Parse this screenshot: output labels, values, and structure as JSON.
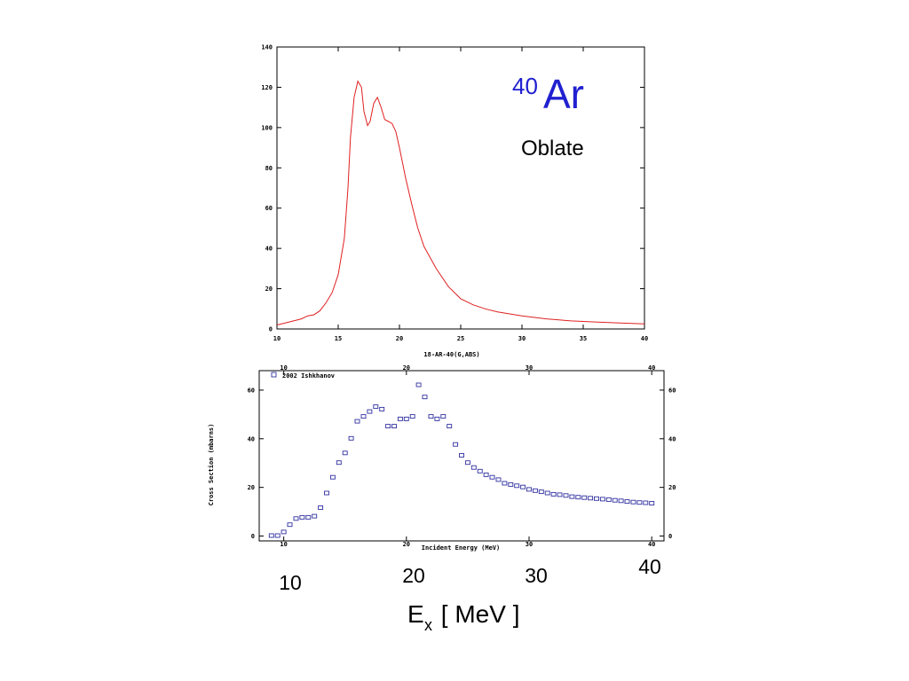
{
  "slide": {
    "nucleus_mass": "40",
    "nucleus_symbol": "Ar",
    "shape_label": "Oblate",
    "bottom_axis_label_main": "E",
    "bottom_axis_label_sub": "x",
    "bottom_axis_label_unit": " [ MeV ]",
    "bottom_ticks": [
      "10",
      "20",
      "30",
      "40"
    ]
  },
  "colors": {
    "top_curve": "#e02020",
    "points": "#3030a0",
    "title": "#2020d0",
    "axes": "#000000"
  },
  "chart_data": [
    {
      "type": "line",
      "title": "",
      "xlabel": "18-AR-40(G,ABS)",
      "ylabel": "",
      "xlim": [
        10,
        40
      ],
      "ylim": [
        0,
        140
      ],
      "x_ticks": [
        10,
        15,
        20,
        25,
        30,
        35,
        40
      ],
      "y_ticks": [
        0,
        20,
        40,
        60,
        80,
        100,
        120,
        140
      ],
      "grid": false,
      "series": [
        {
          "x": [
            10,
            11,
            12,
            12.5,
            13,
            13.5,
            14,
            14.5,
            15,
            15.5,
            15.8,
            16,
            16.3,
            16.6,
            16.9,
            17.1,
            17.4,
            17.6,
            17.9,
            18.2,
            18.5,
            18.8,
            19.1,
            19.4,
            19.7,
            20,
            20.5,
            21,
            21.5,
            22,
            23,
            24,
            25,
            26,
            27,
            28,
            30,
            32,
            34,
            36,
            38,
            40
          ],
          "y": [
            2,
            3.5,
            5,
            6.5,
            7,
            9,
            13,
            18,
            27,
            45,
            70,
            95,
            115,
            123,
            120,
            108,
            101,
            103,
            112,
            115,
            110,
            104,
            103,
            102,
            98,
            90,
            75,
            62,
            50,
            41,
            30,
            21,
            15,
            12,
            10,
            8.5,
            6.5,
            5,
            4,
            3.5,
            3,
            2.5
          ]
        }
      ]
    },
    {
      "type": "scatter",
      "title": "",
      "xlabel": "Incident Energy (MeV)",
      "ylabel": "Cross Section (mbarns)",
      "xlim": [
        8,
        41
      ],
      "ylim": [
        -2,
        68
      ],
      "x_ticks": [
        10,
        20,
        30,
        40
      ],
      "y_ticks": [
        0,
        20,
        40,
        60
      ],
      "legend": "top-left",
      "grid": false,
      "series": [
        {
          "name": "2002 Ishkhanov",
          "x": [
            9,
            9.5,
            10,
            10.5,
            11,
            11.5,
            12,
            12.5,
            13,
            13.5,
            14,
            14.5,
            15,
            15.5,
            16,
            16.5,
            17,
            17.5,
            18,
            18.5,
            19,
            19.5,
            20,
            20.5,
            21,
            21.5,
            22,
            22.5,
            23,
            23.5,
            24,
            24.5,
            25,
            25.5,
            26,
            26.5,
            27,
            27.5,
            28,
            28.5,
            29,
            29.5,
            30,
            30.5,
            31,
            31.5,
            32,
            32.5,
            33,
            33.5,
            34,
            34.5,
            35,
            35.5,
            36,
            36.5,
            37,
            37.5,
            38,
            38.5,
            39,
            39.5,
            40
          ],
          "y": [
            0,
            0,
            1.5,
            4.5,
            7,
            7.5,
            7.5,
            8,
            11.5,
            17.5,
            24,
            30,
            34,
            40,
            47,
            49,
            51,
            53,
            52,
            45,
            45,
            48,
            48,
            49,
            62,
            57,
            49,
            48,
            49,
            45,
            37.5,
            33,
            30,
            28,
            26.5,
            25,
            24,
            23,
            21.5,
            21,
            20.5,
            20,
            19,
            18.5,
            18,
            17.5,
            17,
            16.8,
            16.5,
            16,
            15.8,
            15.6,
            15.4,
            15.2,
            15,
            14.8,
            14.5,
            14.3,
            14,
            13.8,
            13.6,
            13.5,
            13.3
          ]
        }
      ]
    }
  ]
}
